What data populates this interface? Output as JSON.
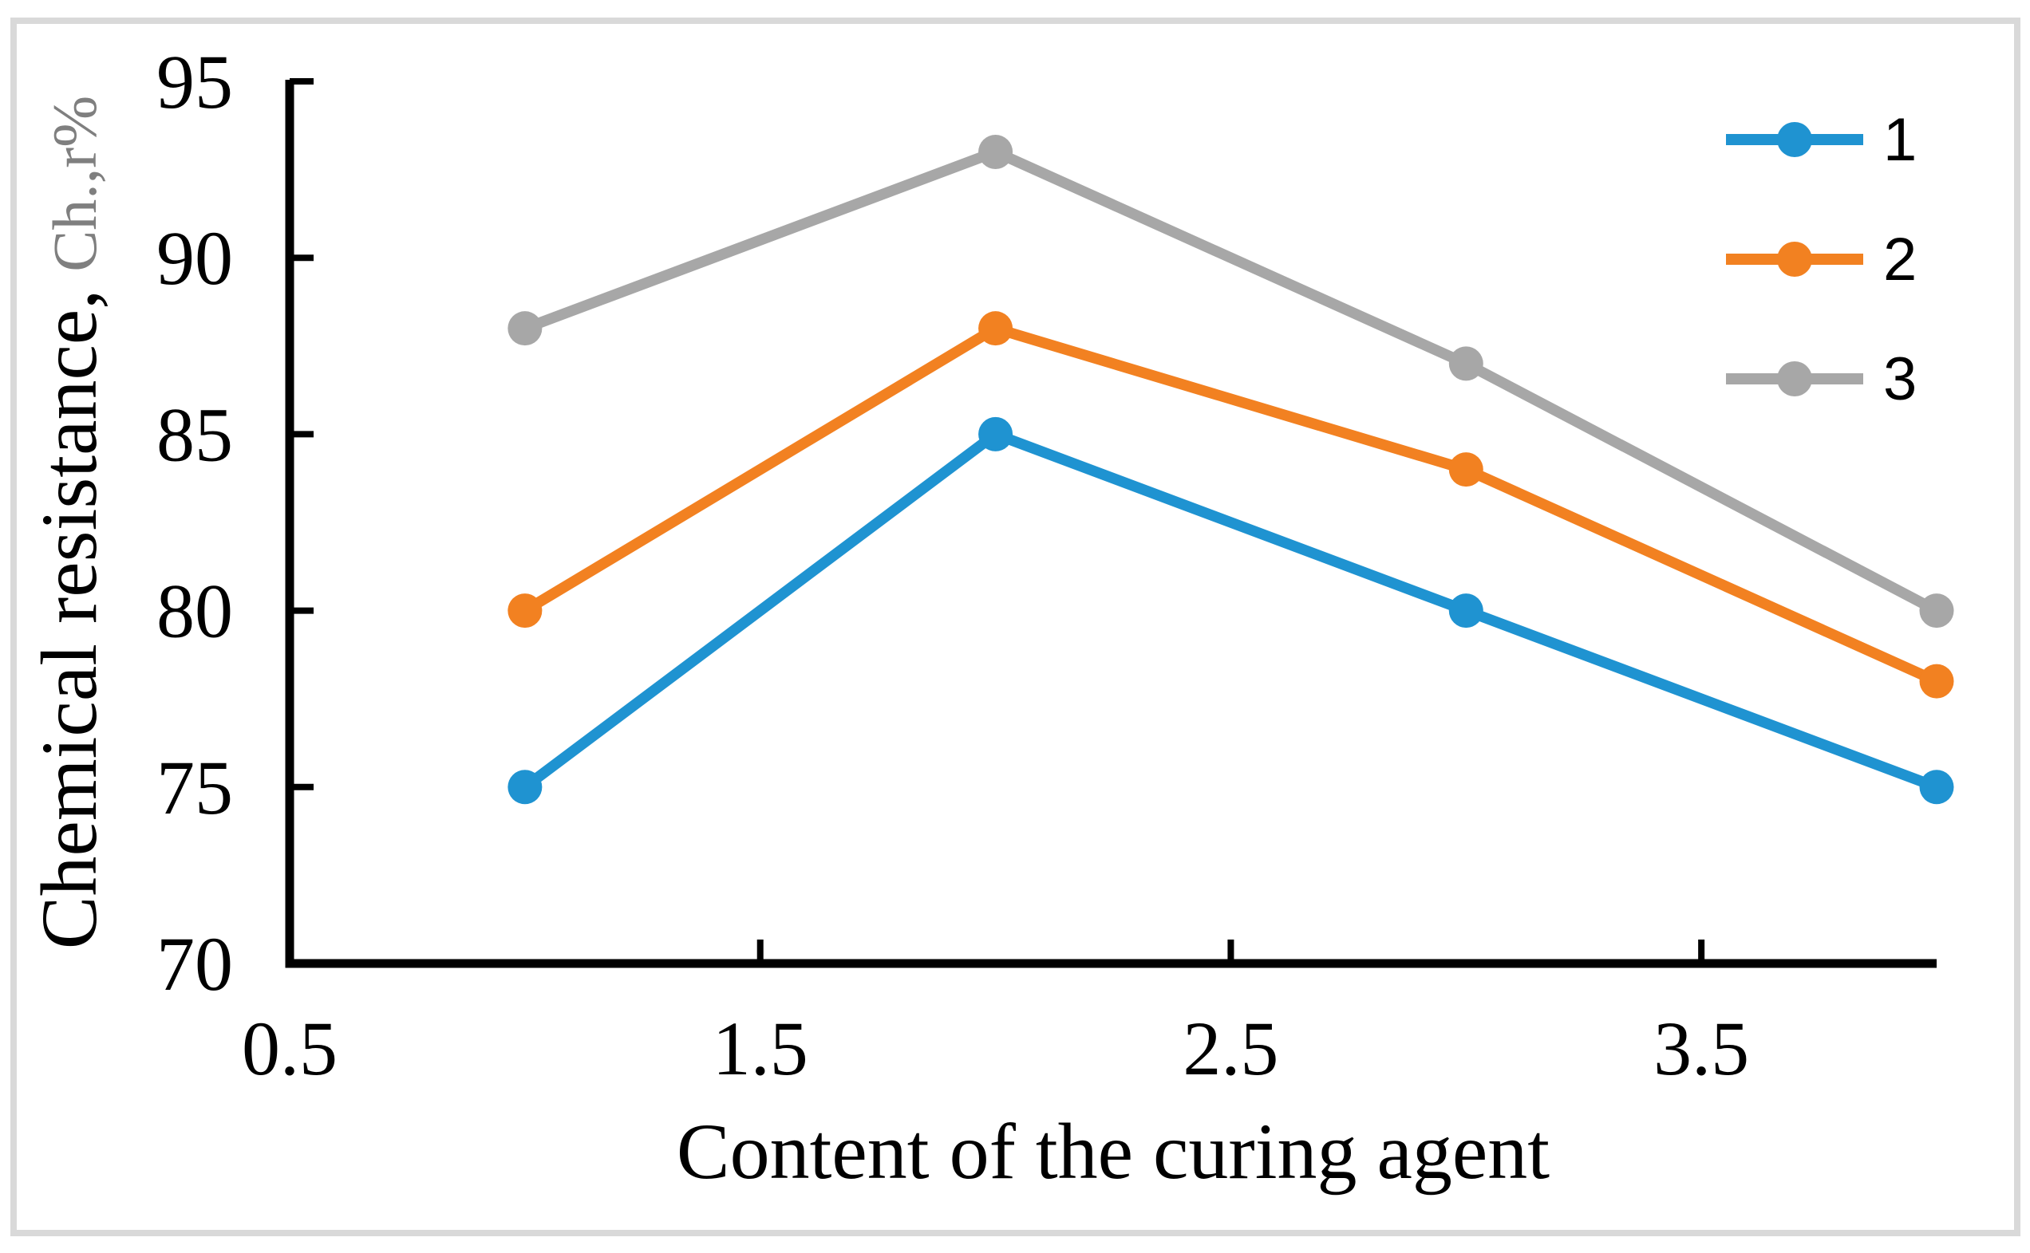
{
  "chart_data": {
    "type": "line",
    "x": [
      1,
      2,
      3,
      4
    ],
    "series": [
      {
        "name": "1",
        "color": "#1f93d1",
        "values": [
          75,
          85,
          80,
          75
        ]
      },
      {
        "name": "2",
        "color": "#f28121",
        "values": [
          80,
          88,
          84,
          78
        ]
      },
      {
        "name": "3",
        "color": "#a7a7a7",
        "values": [
          88,
          93,
          87,
          80
        ]
      }
    ],
    "title": "",
    "xlabel": "Content of the curing agent",
    "ylabel": "Chemical resistance,",
    "ylabel_suffix": "Ch.,r%",
    "xlim": [
      0.5,
      4.0
    ],
    "ylim": [
      70,
      95
    ],
    "x_ticks": [
      0.5,
      1.5,
      2.5,
      3.5
    ],
    "y_ticks": [
      70,
      75,
      80,
      85,
      90,
      95
    ],
    "grid": false,
    "legend_position": "top-right",
    "legend_labels": [
      "1",
      "2",
      "3"
    ]
  },
  "colors": {
    "axis": "#000000",
    "text": "#000000",
    "ylabel_suffix": "#7f7f7f",
    "frame": "#d9d9d9",
    "background": "#ffffff"
  }
}
